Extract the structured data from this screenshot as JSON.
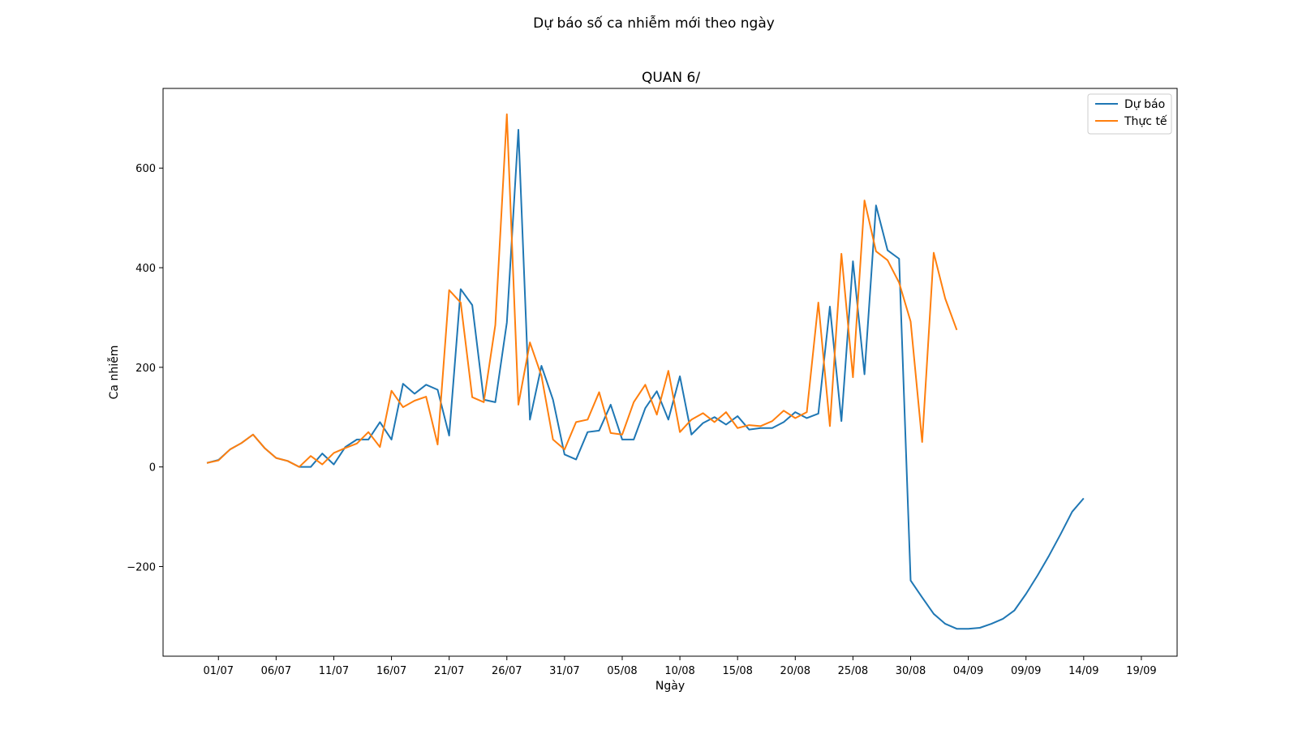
{
  "chart_data": {
    "type": "line",
    "suptitle": "Dự báo số ca nhiễm mới theo ngày",
    "title": "QUAN 6/",
    "xlabel": "Ngày",
    "ylabel": "Ca nhiễm",
    "xlim": [
      -4.8,
      83.1
    ],
    "ylim": [
      -380,
      760
    ],
    "xticks": [
      {
        "x": 0,
        "label": "01/07"
      },
      {
        "x": 5,
        "label": "06/07"
      },
      {
        "x": 10,
        "label": "11/07"
      },
      {
        "x": 15,
        "label": "16/07"
      },
      {
        "x": 20,
        "label": "21/07"
      },
      {
        "x": 25,
        "label": "26/07"
      },
      {
        "x": 30,
        "label": "31/07"
      },
      {
        "x": 35,
        "label": "05/08"
      },
      {
        "x": 40,
        "label": "10/08"
      },
      {
        "x": 45,
        "label": "15/08"
      },
      {
        "x": 50,
        "label": "20/08"
      },
      {
        "x": 55,
        "label": "25/08"
      },
      {
        "x": 60,
        "label": "30/08"
      },
      {
        "x": 65,
        "label": "04/09"
      },
      {
        "x": 70,
        "label": "09/09"
      },
      {
        "x": 75,
        "label": "14/09"
      },
      {
        "x": 80,
        "label": "19/09"
      }
    ],
    "yticks": [
      {
        "y": -200,
        "label": "−200"
      },
      {
        "y": 0,
        "label": "0"
      },
      {
        "y": 200,
        "label": "200"
      },
      {
        "y": 400,
        "label": "400"
      },
      {
        "y": 600,
        "label": "600"
      }
    ],
    "legend_position": "upper-right",
    "series": [
      {
        "name": "Dự báo",
        "color": "#1f77b4",
        "x_start": -1,
        "values": [
          8,
          14,
          35,
          48,
          65,
          38,
          18,
          12,
          0,
          0,
          27,
          5,
          40,
          55,
          55,
          90,
          55,
          167,
          147,
          165,
          155,
          63,
          357,
          325,
          135,
          130,
          290,
          677,
          95,
          203,
          135,
          25,
          15,
          70,
          73,
          125,
          55,
          55,
          118,
          152,
          95,
          182,
          65,
          88,
          100,
          85,
          102,
          75,
          78,
          78,
          90,
          110,
          98,
          107,
          322,
          92,
          413,
          186,
          525,
          435,
          418,
          -228,
          -262,
          -295,
          -315,
          -325,
          -325,
          -323,
          -315,
          -305,
          -288,
          -255,
          -218,
          -178,
          -135,
          -90,
          -63
        ]
      },
      {
        "name": "Thực tế",
        "color": "#ff7f0e",
        "x_start": -1,
        "values": [
          8,
          13,
          35,
          48,
          65,
          38,
          18,
          12,
          0,
          22,
          5,
          28,
          38,
          47,
          70,
          40,
          153,
          120,
          133,
          141,
          45,
          355,
          330,
          140,
          130,
          285,
          708,
          125,
          250,
          183,
          55,
          35,
          90,
          95,
          150,
          68,
          65,
          130,
          165,
          105,
          193,
          70,
          95,
          108,
          90,
          110,
          78,
          84,
          82,
          92,
          113,
          98,
          110,
          330,
          82,
          428,
          180,
          535,
          433,
          415,
          370,
          292,
          50,
          430,
          338,
          275
        ]
      }
    ]
  }
}
